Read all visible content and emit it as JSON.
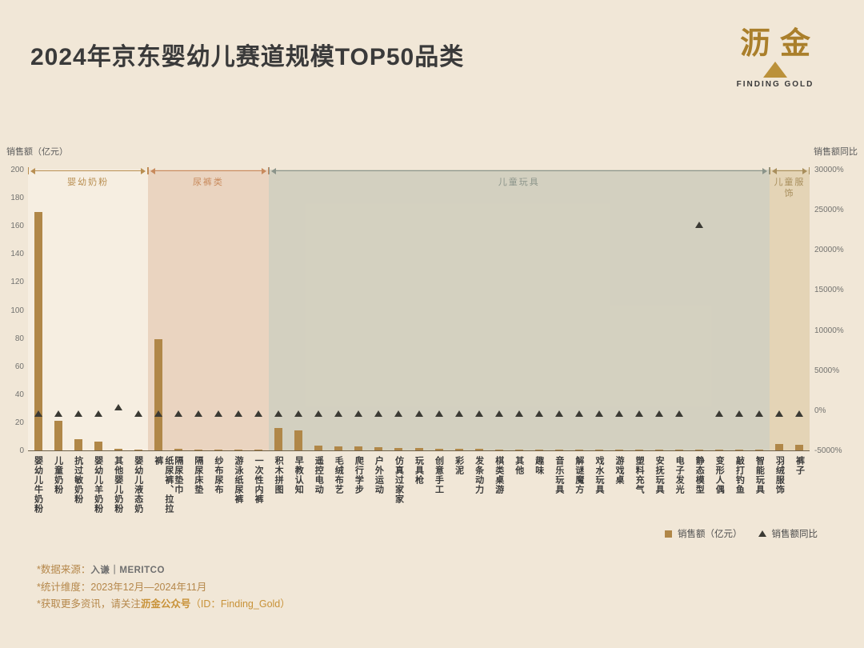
{
  "header": {
    "title": "2024年京东婴幼儿赛道规模TOP50品类",
    "logo": {
      "wordmark": "沥金",
      "subtitle": "FINDING GOLD"
    }
  },
  "axes": {
    "left_label": "销售额（亿元）",
    "right_label": "销售额同比"
  },
  "legend": {
    "bar_label": "销售额（亿元）",
    "triangle_label": "销售额同比"
  },
  "footer": {
    "line1_prefix": "*数据来源：",
    "line1_logo": "入谦｜MERITCO",
    "line2": "*统计维度：2023年12月—2024年11月",
    "line3_prefix": "*获取更多资讯，请关注",
    "line3_highlight": "沥金公众号",
    "line3_suffix": "（ID：Finding_Gold）"
  },
  "colors": {
    "background": "#f1e7d7",
    "bar": "#b08748",
    "triangle": "#3b3a34",
    "accent_gold": "#b5874a"
  },
  "chart_data": {
    "type": "bar",
    "title": "2024年京东婴幼儿赛道规模TOP50品类",
    "left_axis": {
      "label": "销售额（亿元）",
      "min": 0,
      "max": 200,
      "step": 20
    },
    "right_axis": {
      "label": "销售额同比",
      "min": -5000,
      "max": 30000,
      "step": 5000,
      "suffix": "%"
    },
    "legend_position": "bottom-right",
    "grid": false,
    "groups": [
      {
        "label": "婴幼奶粉",
        "start": 0,
        "end": 5,
        "color": "#b98f52",
        "band": "rgba(252,246,238,0.45)"
      },
      {
        "label": "尿裤类",
        "start": 6,
        "end": 11,
        "color": "#c88a5c",
        "band": "rgba(215,166,132,0.28)"
      },
      {
        "label": "儿童玩具",
        "start": 12,
        "end": 36,
        "color": "#8b948a",
        "band": "rgba(164,172,154,0.38)"
      },
      {
        "label": "儿童服饰",
        "start": 37,
        "end": 38,
        "color": "#a88e5c",
        "band": "rgba(203,172,116,0.33)"
      }
    ],
    "categories": [
      "婴幼儿牛奶粉",
      "儿童奶粉",
      "抗过敏奶粉",
      "婴幼儿羊奶粉",
      "其他婴儿奶粉",
      "婴幼儿液态奶",
      "纸尿裤、拉拉裤",
      "隔尿垫巾",
      "隔尿床垫",
      "纱布尿布",
      "游泳纸尿裤",
      "一次性内裤",
      "积木拼图",
      "早教认知",
      "遥控电动",
      "毛绒布艺",
      "爬行学步",
      "户外运动",
      "仿真过家家",
      "玩具枪",
      "创意手工",
      "彩泥",
      "发条动力",
      "棋类桌游",
      "其他",
      "趣味",
      "音乐玩具",
      "解谜魔方",
      "戏水玩具",
      "游戏桌",
      "塑料充气",
      "安抚玩具",
      "电子发光",
      "静态模型",
      "变形人偶",
      "敲打钓鱼",
      "智能玩具",
      "羽绒服饰",
      "裤子"
    ],
    "series": [
      {
        "name": "销售额（亿元）",
        "type": "bar",
        "values": [
          170,
          21,
          8,
          6,
          1.2,
          0.8,
          79,
          1.2,
          0.8,
          0.6,
          0.5,
          0.4,
          16,
          14,
          3.5,
          3,
          2.8,
          2.2,
          2,
          1.8,
          1.2,
          1,
          0.9,
          0.8,
          0.7,
          0.7,
          0.6,
          0.6,
          0.5,
          0.5,
          0.4,
          0.4,
          0.3,
          0.3,
          0.3,
          0.2,
          0.2,
          4.5,
          4
        ]
      },
      {
        "name": "销售额同比",
        "type": "scatter-triangle",
        "unit": "%",
        "values": [
          0,
          0,
          0,
          0,
          800,
          0,
          0,
          0,
          0,
          0,
          0,
          0,
          0,
          0,
          0,
          0,
          0,
          0,
          0,
          0,
          0,
          0,
          0,
          0,
          0,
          0,
          0,
          0,
          0,
          0,
          0,
          0,
          0,
          23500,
          0,
          0,
          0,
          0,
          0
        ]
      }
    ]
  }
}
